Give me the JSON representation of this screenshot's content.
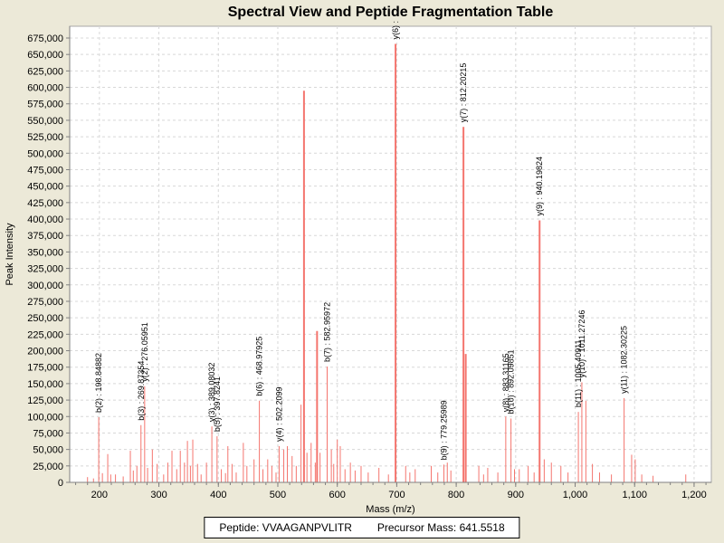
{
  "window": {
    "background_color": "#ece9d8",
    "plot_background": "#ffffff"
  },
  "title": "Spectral View and Peptide Fragmentation Table",
  "footer": {
    "peptide_label": "Peptide: VVAAGANPVLITR",
    "precursor_label": "Precursor Mass: 641.5518"
  },
  "chart_data": {
    "type": "bar",
    "title": "Spectral View and Peptide Fragmentation Table",
    "xlabel": "Mass (m/z)",
    "ylabel": "Peak Intensity",
    "grid": true,
    "peak_color": "#f4756e",
    "grid_color": "#d8d8d8",
    "axis_color": "#808080",
    "border_color": "#a8a8a8",
    "label_color": "#000000",
    "x_axis": {
      "min": 150,
      "max": 1229,
      "tick_start": 200,
      "tick_end": 1200,
      "major_tick_step": 100,
      "minor_tick_step": 20
    },
    "y_axis": {
      "min": 0,
      "max_tick": 675000,
      "tick_step": 25000,
      "top_clip_value": 693000
    },
    "labeled_peaks": [
      {
        "ion": "b(2)",
        "label": "b(2) : 198.84882",
        "mz": 198.85,
        "intensity": 99000
      },
      {
        "ion": "b(3)",
        "label": "b(3) : 269.87354",
        "mz": 269.87,
        "intensity": 87000
      },
      {
        "ion": "y(2)",
        "label": "y(2) : 276.05951",
        "mz": 276.06,
        "intensity": 146000
      },
      {
        "ion": "y(3)",
        "label": "y(3) : 389.08032",
        "mz": 389.08,
        "intensity": 85000
      },
      {
        "ion": "b(5)",
        "label": "b(5) : 397.8241",
        "mz": 397.82,
        "intensity": 70000
      },
      {
        "ion": "b(6)",
        "label": "b(6) : 468.97925",
        "mz": 468.98,
        "intensity": 124000
      },
      {
        "ion": "y(4)",
        "label": "y(4) : 502.2099",
        "mz": 502.21,
        "intensity": 55000
      },
      {
        "ion": "b(7)",
        "label": "b(7) : 582.95972",
        "mz": 582.96,
        "intensity": 176000
      },
      {
        "ion": "y(6)",
        "label": "y(6) :",
        "mz": 698.0,
        "intensity": 666000
      },
      {
        "ion": "b(9)",
        "label": "b(9) : 779.25989",
        "mz": 779.26,
        "intensity": 27000
      },
      {
        "ion": "y(7)",
        "label": "y(7) : 812.20215",
        "mz": 812.2,
        "intensity": 540000
      },
      {
        "ion": "y(8)",
        "label": "y(8) : 883.31165",
        "mz": 883.31,
        "intensity": 100000
      },
      {
        "ion": "b(10)",
        "label": "b(10) : 892.09851",
        "mz": 892.1,
        "intensity": 97000
      },
      {
        "ion": "y(9)",
        "label": "y(9) : 940.19824",
        "mz": 940.2,
        "intensity": 398000
      },
      {
        "ion": "b(11)",
        "label": "b(11) : 1005.40911",
        "mz": 1005.41,
        "intensity": 107000
      },
      {
        "ion": "y(10)",
        "label": "y(10) : 1011.27246",
        "mz": 1011.27,
        "intensity": 152000
      },
      {
        "ion": "y(11)",
        "label": "y(11) : 1082.30225",
        "mz": 1082.3,
        "intensity": 128000
      }
    ],
    "unlabeled_peaks": [
      [
        180,
        8000
      ],
      [
        190,
        6000
      ],
      [
        205,
        14000
      ],
      [
        214,
        43000
      ],
      [
        219,
        12000
      ],
      [
        227,
        12000
      ],
      [
        240,
        9000
      ],
      [
        252,
        48000
      ],
      [
        257,
        18000
      ],
      [
        263,
        25000
      ],
      [
        281,
        22000
      ],
      [
        289,
        50000
      ],
      [
        297,
        28000
      ],
      [
        308,
        12000
      ],
      [
        315,
        30000
      ],
      [
        322,
        48000
      ],
      [
        330,
        20000
      ],
      [
        336,
        48000
      ],
      [
        343,
        30000
      ],
      [
        348,
        63000
      ],
      [
        353,
        25000
      ],
      [
        357,
        65000
      ],
      [
        365,
        28000
      ],
      [
        371,
        12000
      ],
      [
        380,
        30000
      ],
      [
        405,
        20000
      ],
      [
        412,
        14000
      ],
      [
        416,
        55000
      ],
      [
        423,
        28000
      ],
      [
        430,
        15000
      ],
      [
        442,
        60000
      ],
      [
        448,
        25000
      ],
      [
        460,
        35000
      ],
      [
        475,
        20000
      ],
      [
        483,
        35000
      ],
      [
        490,
        25000
      ],
      [
        497,
        15000
      ],
      [
        510,
        50000
      ],
      [
        516,
        55000
      ],
      [
        524,
        40000
      ],
      [
        531,
        25000
      ],
      [
        539,
        118000
      ],
      [
        544,
        595000
      ],
      [
        549,
        45000
      ],
      [
        556,
        60000
      ],
      [
        563,
        30000
      ],
      [
        566,
        230000
      ],
      [
        571,
        45000
      ],
      [
        590,
        50000
      ],
      [
        594,
        28000
      ],
      [
        600,
        65000
      ],
      [
        605,
        55000
      ],
      [
        613,
        20000
      ],
      [
        622,
        30000
      ],
      [
        630,
        18000
      ],
      [
        640,
        25000
      ],
      [
        652,
        15000
      ],
      [
        670,
        22000
      ],
      [
        686,
        12000
      ],
      [
        715,
        25000
      ],
      [
        722,
        15000
      ],
      [
        731,
        20000
      ],
      [
        758,
        25000
      ],
      [
        769,
        15000
      ],
      [
        785,
        30000
      ],
      [
        791,
        18000
      ],
      [
        816,
        195000
      ],
      [
        838,
        25000
      ],
      [
        846,
        12000
      ],
      [
        853,
        22000
      ],
      [
        870,
        15000
      ],
      [
        898,
        20000
      ],
      [
        906,
        20000
      ],
      [
        921,
        25000
      ],
      [
        931,
        15000
      ],
      [
        948,
        35000
      ],
      [
        960,
        30000
      ],
      [
        976,
        25000
      ],
      [
        988,
        15000
      ],
      [
        1018,
        124000
      ],
      [
        1029,
        28000
      ],
      [
        1041,
        15000
      ],
      [
        1061,
        12000
      ],
      [
        1095,
        42000
      ],
      [
        1101,
        35000
      ],
      [
        1112,
        12000
      ],
      [
        1131,
        10000
      ],
      [
        1186,
        12000
      ]
    ]
  }
}
